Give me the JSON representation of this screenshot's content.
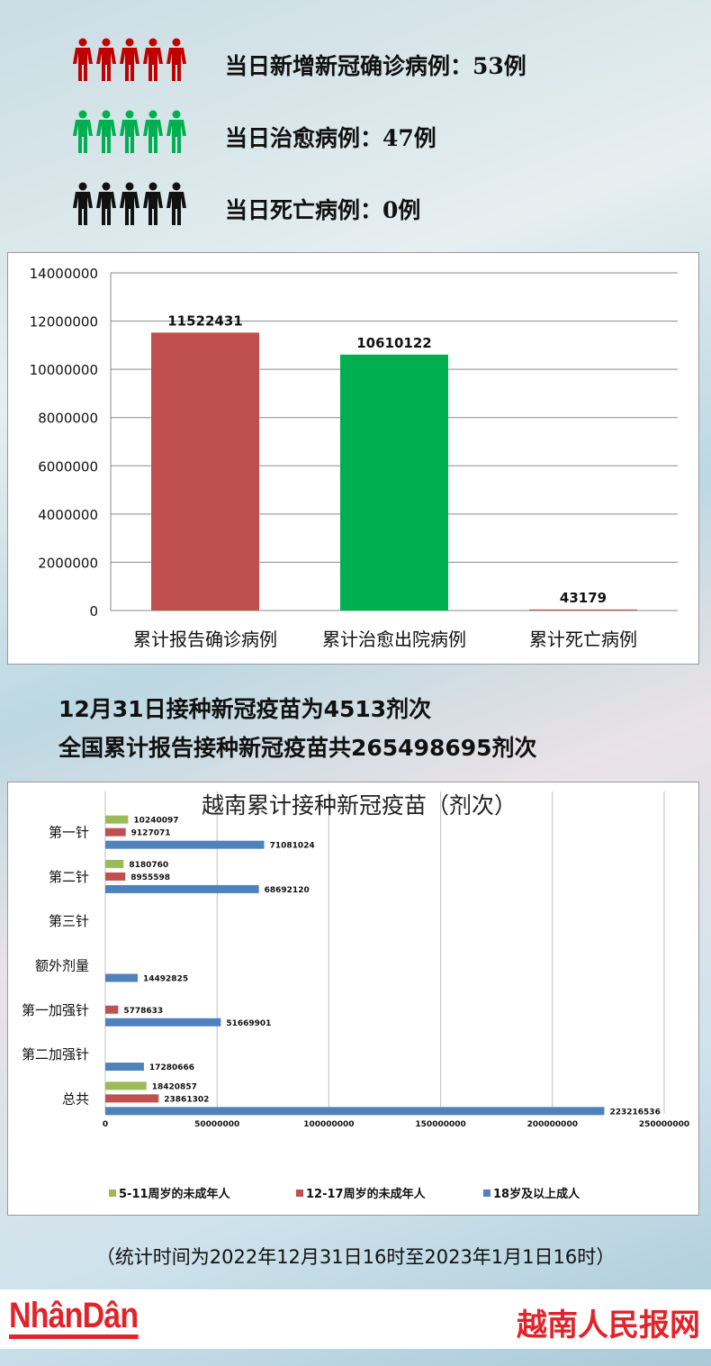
{
  "daily": [
    {
      "color": "#c00000",
      "text": "当日新增新冠确诊病例：53例",
      "icon": "person-icon"
    },
    {
      "color": "#00b050",
      "text": "当日治愈病例：47例",
      "icon": "person-icon"
    },
    {
      "color": "#111111",
      "text": "当日死亡病例：0例",
      "icon": "person-icon"
    }
  ],
  "headlines": [
    "12月31日接种新冠疫苗为4513剂次",
    "全国累计报告接种新冠疫苗共265498695剂次"
  ],
  "footnote": "（统计时间为2022年12月31日16时至2023年1月1日16时）",
  "logos": {
    "left": "NhânDân",
    "right": "越南人民报网"
  },
  "chart_data": [
    {
      "type": "bar",
      "categories": [
        "累计报告确诊病例",
        "累计治愈出院病例",
        "累计死亡病例"
      ],
      "values": [
        11522431,
        10610122,
        43179
      ],
      "colors": [
        "#c0504d",
        "#00b050",
        "#c0504d"
      ],
      "ylim": [
        0,
        14000000
      ],
      "yticks": [
        0,
        2000000,
        4000000,
        6000000,
        8000000,
        10000000,
        12000000,
        14000000
      ],
      "grid": true
    },
    {
      "type": "bar",
      "orientation": "horizontal",
      "title": "越南累计接种新冠疫苗（剂次）",
      "categories": [
        "第一针",
        "第二针",
        "第三针",
        "额外剂量",
        "第一加强针",
        "第二加强针",
        "总共"
      ],
      "series": [
        {
          "name": "5-11周岁的未成年人",
          "color": "#9bbb59",
          "values": [
            10240097,
            8180760,
            null,
            null,
            null,
            null,
            18420857
          ]
        },
        {
          "name": "12-17周岁的未成年人",
          "color": "#c0504d",
          "values": [
            9127071,
            8955598,
            null,
            null,
            5778633,
            null,
            23861302
          ]
        },
        {
          "name": "18岁及以上成人",
          "color": "#4f81bd",
          "values": [
            71081024,
            68692120,
            null,
            14492825,
            51669901,
            17280666,
            223216536
          ]
        }
      ],
      "xlim": [
        0,
        250000000
      ],
      "xticks": [
        0,
        50000000,
        100000000,
        150000000,
        200000000,
        250000000
      ],
      "legend": "bottom",
      "grid": true
    }
  ]
}
